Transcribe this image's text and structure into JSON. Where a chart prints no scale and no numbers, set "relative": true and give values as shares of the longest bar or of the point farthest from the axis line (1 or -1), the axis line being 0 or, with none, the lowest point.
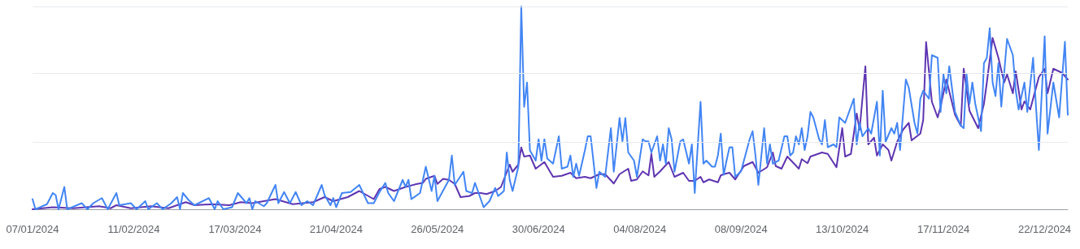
{
  "chart_data": {
    "type": "line",
    "relative": true,
    "marker": "none",
    "line_style": "solid",
    "ref_lines": [
      {
        "axis": "y",
        "value": 0.333,
        "color": "#e8eaed"
      },
      {
        "axis": "y",
        "value": 0.667,
        "color": "#e8eaed"
      },
      {
        "axis": "y",
        "value": 1,
        "color": "#e8eaed"
      }
    ],
    "xlim": [
      "2024-01-07",
      "2024-12-30"
    ],
    "xticks": [
      {
        "value": "2024-01-07",
        "label": "07/01/2024"
      },
      {
        "value": "2024-02-11",
        "label": "11/02/2024"
      },
      {
        "value": "2024-03-17",
        "label": "17/03/2024"
      },
      {
        "value": "2024-04-21",
        "label": "21/04/2024"
      },
      {
        "value": "2024-05-26",
        "label": "26/05/2024"
      },
      {
        "value": "2024-06-30",
        "label": "30/06/2024"
      },
      {
        "value": "2024-08-04",
        "label": "04/08/2024"
      },
      {
        "value": "2024-09-08",
        "label": "08/09/2024"
      },
      {
        "value": "2024-10-13",
        "label": "13/10/2024"
      },
      {
        "value": "2024-11-17",
        "label": "17/11/2024"
      },
      {
        "value": "2024-12-22",
        "label": "22/12/2024"
      }
    ],
    "series": [
      {
        "color": "#5e35b1",
        "x": [
          "2024-01-07",
          "2024-01-14",
          "2024-01-21",
          "2024-01-30",
          "2024-02-03",
          "2024-02-05",
          "2024-02-10",
          "2024-02-17",
          "2024-02-23",
          "2024-02-29",
          "2024-03-03",
          "2024-03-09",
          "2024-03-15",
          "2024-03-19",
          "2024-03-23",
          "2024-03-31",
          "2024-04-06",
          "2024-04-13",
          "2024-04-17",
          "2024-04-20",
          "2024-04-25",
          "2024-04-29",
          "2024-05-04",
          "2024-05-06",
          "2024-05-08",
          "2024-05-11",
          "2024-05-15",
          "2024-05-19",
          "2024-05-21",
          "2024-05-22",
          "2024-05-25",
          "2024-05-26",
          "2024-05-28",
          "2024-05-30",
          "2024-06-01",
          "2024-06-03",
          "2024-06-06",
          "2024-06-08",
          "2024-06-10",
          "2024-06-12",
          "2024-06-15",
          "2024-06-17",
          "2024-06-20",
          "2024-06-21",
          "2024-06-23",
          "2024-06-24",
          "2024-06-25",
          "2024-06-27",
          "2024-06-29",
          "2024-07-02",
          "2024-07-05",
          "2024-07-08",
          "2024-07-11",
          "2024-07-13",
          "2024-07-16",
          "2024-07-18",
          "2024-07-21",
          "2024-07-23",
          "2024-07-26",
          "2024-07-28",
          "2024-07-31",
          "2024-08-01",
          "2024-08-03",
          "2024-08-05",
          "2024-08-07",
          "2024-08-08",
          "2024-08-09",
          "2024-08-11",
          "2024-08-14",
          "2024-08-16",
          "2024-08-19",
          "2024-08-21",
          "2024-08-23",
          "2024-08-25",
          "2024-08-26",
          "2024-08-28",
          "2024-08-31",
          "2024-09-01",
          "2024-09-02",
          "2024-09-04",
          "2024-09-06",
          "2024-09-09",
          "2024-09-12",
          "2024-09-14",
          "2024-09-17",
          "2024-09-19",
          "2024-09-20",
          "2024-09-22",
          "2024-09-24",
          "2024-09-28",
          "2024-09-29",
          "2024-10-01",
          "2024-10-02",
          "2024-10-06",
          "2024-10-08",
          "2024-10-11",
          "2024-10-13",
          "2024-10-14",
          "2024-10-16",
          "2024-10-18",
          "2024-10-19",
          "2024-10-21",
          "2024-10-22",
          "2024-10-24",
          "2024-10-25",
          "2024-10-27",
          "2024-10-29",
          "2024-10-30",
          "2024-11-01",
          "2024-11-03",
          "2024-11-05",
          "2024-11-06",
          "2024-11-09",
          "2024-11-10",
          "2024-11-11",
          "2024-11-13",
          "2024-11-15",
          "2024-11-16",
          "2024-11-18",
          "2024-11-21",
          "2024-11-23",
          "2024-11-24",
          "2024-11-26",
          "2024-11-29",
          "2024-12-01",
          "2024-12-02",
          "2024-12-04",
          "2024-12-06",
          "2024-12-08",
          "2024-12-09",
          "2024-12-11",
          "2024-12-12",
          "2024-12-14",
          "2024-12-15",
          "2024-12-17",
          "2024-12-20",
          "2024-12-22",
          "2024-12-23",
          "2024-12-25",
          "2024-12-28",
          "2024-12-30"
        ],
        "values": [
          0,
          0.01,
          0.005,
          0.015,
          0.005,
          0.02,
          0.005,
          0.015,
          0.005,
          0.035,
          0.02,
          0.025,
          0.02,
          0.035,
          0.03,
          0.05,
          0.025,
          0.035,
          0.06,
          0.04,
          0.06,
          0.09,
          0.05,
          0.1,
          0.11,
          0.09,
          0.11,
          0.125,
          0.13,
          0.15,
          0.165,
          0.125,
          0.15,
          0.145,
          0.125,
          0.06,
          0.065,
          0.08,
          0.08,
          0.075,
          0.09,
          0.11,
          0.22,
          0.185,
          0.22,
          0.305,
          0.26,
          0.265,
          0.2,
          0.233,
          0.16,
          0.165,
          0.18,
          0.153,
          0.16,
          0.153,
          0.173,
          0.173,
          0.127,
          0.173,
          0.2,
          0.14,
          0.147,
          0.187,
          0.167,
          0.273,
          0.16,
          0.187,
          0.233,
          0.16,
          0.18,
          0.14,
          0.14,
          0.16,
          0.133,
          0.147,
          0.133,
          0.167,
          0.173,
          0.18,
          0.147,
          0.213,
          0.233,
          0.18,
          0.207,
          0.28,
          0.213,
          0.2,
          0.26,
          0.2,
          0.247,
          0.227,
          0.26,
          0.28,
          0.273,
          0.207,
          0.4,
          0.26,
          0.273,
          0.472,
          0.392,
          0.705,
          0.32,
          0.353,
          0.265,
          0.32,
          0.292,
          0.24,
          0.333,
          0.392,
          0.426,
          0.34,
          0.373,
          0.44,
          0.825,
          0.53,
          0.453,
          0.506,
          0.64,
          0.466,
          0.412,
          0.693,
          0.486,
          0.4,
          0.52,
          0.625,
          0.845,
          0.747,
          0.625,
          0.665,
          0.572,
          0.68,
          0.492,
          0.532,
          0.492,
          0.652,
          0.693,
          0.572,
          0.693,
          0.673,
          0.64
        ]
      },
      {
        "color": "#4285f4",
        "x": [
          "2024-01-07",
          "2024-01-08",
          "2024-01-12",
          "2024-01-14",
          "2024-01-15",
          "2024-01-16",
          "2024-01-18",
          "2024-01-19",
          "2024-01-24",
          "2024-01-26",
          "2024-01-28",
          "2024-01-31",
          "2024-02-02",
          "2024-02-05",
          "2024-02-06",
          "2024-02-10",
          "2024-02-12",
          "2024-02-15",
          "2024-02-16",
          "2024-02-19",
          "2024-02-21",
          "2024-02-24",
          "2024-02-26",
          "2024-02-27",
          "2024-02-28",
          "2024-03-01",
          "2024-03-03",
          "2024-03-08",
          "2024-03-10",
          "2024-03-11",
          "2024-03-13",
          "2024-03-16",
          "2024-03-18",
          "2024-03-21",
          "2024-03-22",
          "2024-03-23",
          "2024-03-24",
          "2024-03-27",
          "2024-03-28",
          "2024-03-31",
          "2024-04-01",
          "2024-04-03",
          "2024-04-05",
          "2024-04-07",
          "2024-04-09",
          "2024-04-11",
          "2024-04-13",
          "2024-04-16",
          "2024-04-17",
          "2024-04-19",
          "2024-04-20",
          "2024-04-21",
          "2024-04-23",
          "2024-04-26",
          "2024-04-29",
          "2024-05-02",
          "2024-05-04",
          "2024-05-06",
          "2024-05-08",
          "2024-05-09",
          "2024-05-11",
          "2024-05-14",
          "2024-05-15",
          "2024-05-16",
          "2024-05-17",
          "2024-05-20",
          "2024-05-22",
          "2024-05-24",
          "2024-05-25",
          "2024-05-26",
          "2024-05-30",
          "2024-05-31",
          "2024-06-01",
          "2024-06-04",
          "2024-06-05",
          "2024-06-07",
          "2024-06-08",
          "2024-06-11",
          "2024-06-13",
          "2024-06-15",
          "2024-06-16",
          "2024-06-18",
          "2024-06-19",
          "2024-06-20",
          "2024-06-21",
          "2024-06-23",
          "2024-06-24",
          "2024-06-25",
          "2024-06-26",
          "2024-06-27",
          "2024-06-29",
          "2024-06-30",
          "2024-07-01",
          "2024-07-02",
          "2024-07-03",
          "2024-07-05",
          "2024-07-07",
          "2024-07-08",
          "2024-07-10",
          "2024-07-11",
          "2024-07-12",
          "2024-07-13",
          "2024-07-14",
          "2024-07-16",
          "2024-07-17",
          "2024-07-18",
          "2024-07-20",
          "2024-07-21",
          "2024-07-23",
          "2024-07-25",
          "2024-07-26",
          "2024-07-28",
          "2024-07-29",
          "2024-07-30",
          "2024-07-31",
          "2024-08-02",
          "2024-08-03",
          "2024-08-05",
          "2024-08-06",
          "2024-08-07",
          "2024-08-08",
          "2024-08-10",
          "2024-08-11",
          "2024-08-12",
          "2024-08-13",
          "2024-08-14",
          "2024-08-15",
          "2024-08-16",
          "2024-08-18",
          "2024-08-19",
          "2024-08-21",
          "2024-08-22",
          "2024-08-23",
          "2024-08-25",
          "2024-08-26",
          "2024-08-27",
          "2024-08-29",
          "2024-08-30",
          "2024-08-31",
          "2024-09-01",
          "2024-09-02",
          "2024-09-03",
          "2024-09-04",
          "2024-09-05",
          "2024-09-06",
          "2024-09-08",
          "2024-09-11",
          "2024-09-12",
          "2024-09-13",
          "2024-09-14",
          "2024-09-16",
          "2024-09-17",
          "2024-09-18",
          "2024-09-19",
          "2024-09-21",
          "2024-09-23",
          "2024-09-24",
          "2024-09-25",
          "2024-09-26",
          "2024-09-27",
          "2024-09-28",
          "2024-09-29",
          "2024-09-30",
          "2024-10-01",
          "2024-10-02",
          "2024-10-03",
          "2024-10-05",
          "2024-10-06",
          "2024-10-07",
          "2024-10-08",
          "2024-10-10",
          "2024-10-11",
          "2024-10-12",
          "2024-10-14",
          "2024-10-17",
          "2024-10-18",
          "2024-10-19",
          "2024-10-20",
          "2024-10-22",
          "2024-10-23",
          "2024-10-25",
          "2024-10-26",
          "2024-10-27",
          "2024-10-28",
          "2024-10-30",
          "2024-10-31",
          "2024-11-01",
          "2024-11-02",
          "2024-11-04",
          "2024-11-05",
          "2024-11-07",
          "2024-11-08",
          "2024-11-09",
          "2024-11-10",
          "2024-11-12",
          "2024-11-13",
          "2024-11-15",
          "2024-11-16",
          "2024-11-17",
          "2024-11-18",
          "2024-11-19",
          "2024-11-21",
          "2024-11-23",
          "2024-11-24",
          "2024-11-25",
          "2024-11-26",
          "2024-11-27",
          "2024-11-28",
          "2024-11-30",
          "2024-12-01",
          "2024-12-02",
          "2024-12-03",
          "2024-12-04",
          "2024-12-05",
          "2024-12-06",
          "2024-12-07",
          "2024-12-09",
          "2024-12-11",
          "2024-12-12",
          "2024-12-13",
          "2024-12-15",
          "2024-12-16",
          "2024-12-18",
          "2024-12-19",
          "2024-12-20",
          "2024-12-22",
          "2024-12-23",
          "2024-12-25",
          "2024-12-27",
          "2024-12-29",
          "2024-12-30"
        ],
        "values": [
          0.05,
          0,
          0.025,
          0.08,
          0.07,
          0,
          0.11,
          0,
          0.03,
          0,
          0.03,
          0.055,
          0,
          0.08,
          0.02,
          0.03,
          0,
          0.04,
          0,
          0.03,
          0,
          0.03,
          0.06,
          0,
          0.08,
          0.045,
          0.02,
          0.055,
          0,
          0.04,
          0,
          0.01,
          0.08,
          0.03,
          0.055,
          0,
          0.04,
          0.015,
          0.03,
          0.12,
          0.03,
          0.085,
          0.03,
          0.085,
          0.02,
          0.04,
          0.02,
          0.12,
          0.07,
          0.02,
          0.055,
          0.01,
          0.08,
          0.085,
          0.12,
          0.03,
          0.03,
          0.085,
          0.13,
          0.08,
          0.04,
          0.145,
          0.11,
          0.145,
          0.05,
          0.08,
          0.21,
          0.09,
          0.165,
          0.04,
          0.145,
          0.265,
          0.12,
          0.185,
          0.09,
          0.08,
          0.13,
          0.01,
          0.04,
          0.105,
          0.065,
          0.09,
          0.28,
          0.145,
          0.09,
          0.21,
          1,
          0.505,
          0.625,
          0.29,
          0.24,
          0.345,
          0.24,
          0.345,
          0.25,
          0.225,
          0.36,
          0.2,
          0.21,
          0.265,
          0.16,
          0.225,
          0.165,
          0.29,
          0.36,
          0.36,
          0.105,
          0.185,
          0.16,
          0.4,
          0.185,
          0.45,
          0.335,
          0.45,
          0.28,
          0.24,
          0.16,
          0.345,
          0.335,
          0.335,
          0.28,
          0.36,
          0.24,
          0.32,
          0.225,
          0.4,
          0.345,
          0.185,
          0.335,
          0.345,
          0.225,
          0.32,
          0.08,
          0.53,
          0.225,
          0.24,
          0.21,
          0.21,
          0.265,
          0.373,
          0.17,
          0.24,
          0.305,
          0.306,
          0.16,
          0.187,
          0.346,
          0.385,
          0.265,
          0.12,
          0.4,
          0.225,
          0.32,
          0.225,
          0.24,
          0.36,
          0.36,
          0.265,
          0.28,
          0.36,
          0.32,
          0.4,
          0.292,
          0.36,
          0.48,
          0.453,
          0.346,
          0.32,
          0.44,
          0.306,
          0.32,
          0.306,
          0.453,
          0.426,
          0.545,
          0.32,
          0.426,
          0.36,
          0.4,
          0.373,
          0.53,
          0.265,
          0.585,
          0.333,
          0.4,
          0.373,
          0.426,
          0.292,
          0.64,
          0.6,
          0.426,
          0.373,
          0.545,
          0.585,
          0.545,
          0.76,
          0.747,
          0.48,
          0.665,
          0.572,
          0.705,
          0.48,
          0.412,
          0.4,
          0.665,
          0.52,
          0.625,
          0.52,
          0.385,
          0.72,
          0.747,
          0.893,
          0.625,
          0.558,
          0.72,
          0.506,
          0.84,
          0.76,
          0.585,
          0.492,
          0.625,
          0.48,
          0.747,
          0.506,
          0.292,
          0.853,
          0.373,
          0.625,
          0.453,
          0.826,
          0.466
        ]
      }
    ]
  }
}
